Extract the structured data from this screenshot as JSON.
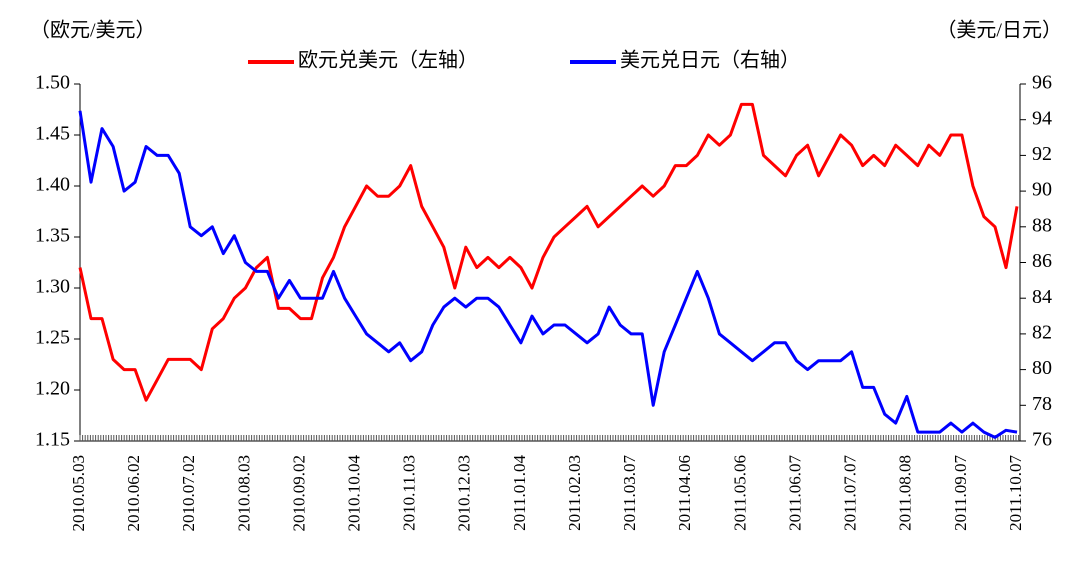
{
  "chart_data": {
    "type": "line",
    "y_label": "（欧元/美元）",
    "y2_label": "（美元/日元）",
    "categories": [
      "2010.05.03",
      null,
      null,
      null,
      null,
      "2010.06.02",
      null,
      null,
      null,
      null,
      "2010.07.02",
      null,
      null,
      null,
      null,
      "2010.08.03",
      null,
      null,
      null,
      null,
      "2010.09.02",
      null,
      null,
      null,
      null,
      "2010.10.04",
      null,
      null,
      null,
      null,
      "2010.11.03",
      null,
      null,
      null,
      null,
      "2010.12.03",
      null,
      null,
      null,
      null,
      "2011.01.04",
      null,
      null,
      null,
      null,
      "2011.02.03",
      null,
      null,
      null,
      null,
      "2011.03.07",
      null,
      null,
      null,
      null,
      "2011.04.06",
      null,
      null,
      null,
      null,
      "2011.05.06",
      null,
      null,
      null,
      null,
      "2011.06.07",
      null,
      null,
      null,
      null,
      "2011.07.07",
      null,
      null,
      null,
      null,
      "2011.08.08",
      null,
      null,
      null,
      null,
      "2011.09.07",
      null,
      null,
      null,
      null,
      "2011.10.07"
    ],
    "series": [
      {
        "name": "欧元兑美元（左轴）",
        "color": "#ff0000",
        "axis": "y",
        "values": [
          1.32,
          1.27,
          1.27,
          1.23,
          1.22,
          1.22,
          1.19,
          1.21,
          1.23,
          1.23,
          1.23,
          1.22,
          1.26,
          1.27,
          1.29,
          1.3,
          1.32,
          1.33,
          1.28,
          1.28,
          1.27,
          1.27,
          1.31,
          1.33,
          1.36,
          1.38,
          1.4,
          1.39,
          1.39,
          1.4,
          1.42,
          1.38,
          1.36,
          1.34,
          1.3,
          1.34,
          1.32,
          1.33,
          1.32,
          1.33,
          1.32,
          1.3,
          1.33,
          1.35,
          1.36,
          1.37,
          1.38,
          1.36,
          1.37,
          1.38,
          1.39,
          1.4,
          1.39,
          1.4,
          1.42,
          1.42,
          1.43,
          1.45,
          1.44,
          1.45,
          1.48,
          1.48,
          1.43,
          1.42,
          1.41,
          1.43,
          1.44,
          1.41,
          1.43,
          1.45,
          1.44,
          1.42,
          1.43,
          1.42,
          1.44,
          1.43,
          1.42,
          1.44,
          1.43,
          1.45,
          1.45,
          1.4,
          1.37,
          1.36,
          1.32,
          1.38
        ]
      },
      {
        "name": "美元兑日元（右轴）",
        "color": "#0000ff",
        "axis": "y2",
        "values": [
          94.5,
          90.5,
          93.5,
          92.5,
          90,
          90.5,
          92.5,
          92,
          92,
          91,
          88,
          87.5,
          88,
          86.5,
          87.5,
          86,
          85.5,
          85.5,
          84,
          85,
          84,
          84,
          84,
          85.5,
          84,
          83,
          82,
          81.5,
          81,
          81.5,
          80.5,
          81,
          82.5,
          83.5,
          84,
          83.5,
          84,
          84,
          83.5,
          82.5,
          81.5,
          83,
          82,
          82.5,
          82.5,
          82,
          81.5,
          82,
          83.5,
          82.5,
          82,
          82,
          78,
          81,
          82.5,
          84,
          85.5,
          84,
          82,
          81.5,
          81,
          80.5,
          81,
          81.5,
          81.5,
          80.5,
          80,
          80.5,
          80.5,
          80.5,
          81,
          79,
          79,
          77.5,
          77,
          78.5,
          76.5,
          76.5,
          76.5,
          77,
          76.5,
          77,
          76.5,
          76.2,
          76.6,
          76.5
        ]
      }
    ],
    "ylim": [
      1.15,
      1.5
    ],
    "yticks": [
      1.15,
      {
        "value": 1.2,
        "label": "1.20"
      },
      1.25,
      {
        "value": 1.3,
        "label": "1.30"
      },
      1.35,
      {
        "value": 1.4,
        "label": "1.40"
      },
      1.45,
      {
        "value": 1.5,
        "label": "1.50"
      }
    ],
    "y2lim": [
      76,
      96
    ],
    "y2ticks": [
      76,
      78,
      80,
      82,
      84,
      86,
      88,
      90,
      92,
      94,
      96
    ],
    "grid": false,
    "legend": "top"
  }
}
